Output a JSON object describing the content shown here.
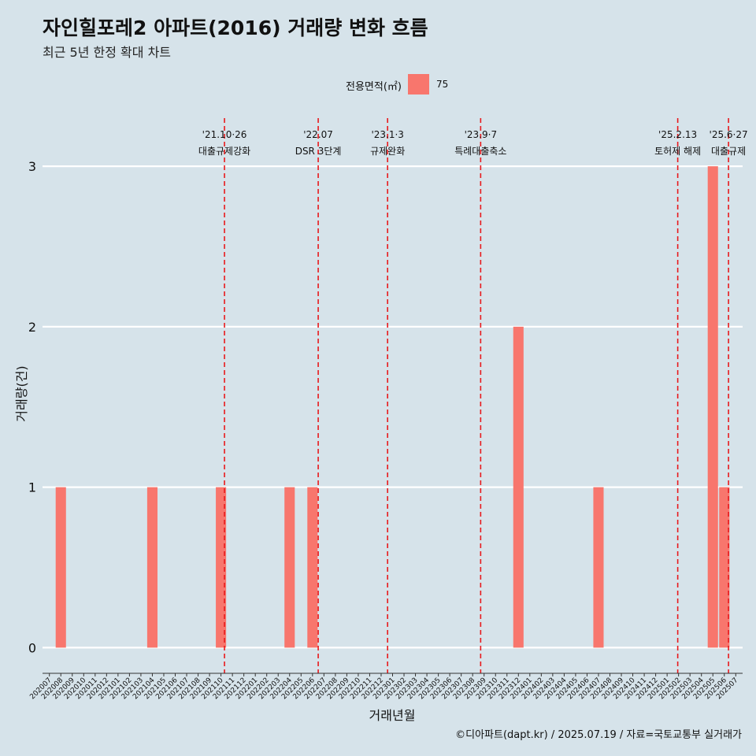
{
  "header": {
    "title": "자인힐포레2 아파트(2016) 거래량 변화 흐름",
    "subtitle": "최근 5년 한정 확대 차트"
  },
  "legend": {
    "title": "전용면적(㎡)",
    "items": [
      {
        "label": "75",
        "color": "#f8766d"
      }
    ]
  },
  "caption": "©디아파트(dapt.kr) / 2025.07.19 / 자료=국토교통부 실거래가",
  "chart_data": {
    "type": "bar",
    "xlabel": "거래년월",
    "ylabel": "거래량(건)",
    "ylim": [
      -0.16,
      3.3
    ],
    "yticks": [
      0,
      1,
      2,
      3
    ],
    "grid": "horizontal major lines only",
    "legend_position": "top",
    "bar_color": "#f8766d",
    "categories": [
      "202007",
      "202008",
      "202009",
      "202010",
      "202011",
      "202012",
      "202101",
      "202102",
      "202103",
      "202104",
      "202105",
      "202106",
      "202107",
      "202108",
      "202109",
      "202110",
      "202111",
      "202112",
      "202201",
      "202202",
      "202203",
      "202204",
      "202205",
      "202206",
      "202207",
      "202208",
      "202209",
      "202210",
      "202211",
      "202212",
      "202301",
      "202302",
      "202303",
      "202304",
      "202305",
      "202306",
      "202307",
      "202308",
      "202309",
      "202310",
      "202311",
      "202312",
      "202401",
      "202402",
      "202403",
      "202404",
      "202405",
      "202406",
      "202407",
      "202408",
      "202409",
      "202410",
      "202411",
      "202412",
      "202501",
      "202502",
      "202503",
      "202504",
      "202505",
      "202506",
      "202507"
    ],
    "series": [
      {
        "name": "75",
        "bars": [
          {
            "x": "202008",
            "y": 1
          },
          {
            "x": "202104",
            "y": 1
          },
          {
            "x": "202110",
            "y": 1
          },
          {
            "x": "202204",
            "y": 1
          },
          {
            "x": "202206",
            "y": 1
          },
          {
            "x": "202312",
            "y": 2
          },
          {
            "x": "202407",
            "y": 1
          },
          {
            "x": "202505",
            "y": 3
          },
          {
            "x": "202506",
            "y": 1
          }
        ]
      }
    ],
    "events": [
      {
        "date": "'21.10·26",
        "label": "대출규제강화",
        "x": "2021-10-26",
        "color": "#e8191c"
      },
      {
        "date": "'22.07",
        "label": "DSR 3단계",
        "x": "2022-07-01",
        "color": "#e8191c"
      },
      {
        "date": "'23.1·3",
        "label": "규제완화",
        "x": "2023-01-03",
        "color": "#e8191c"
      },
      {
        "date": "'23.9·7",
        "label": "특례대출축소",
        "x": "2023-09-07",
        "color": "#e8191c"
      },
      {
        "date": "'25.2.13",
        "label": "토허제 해제",
        "x": "2025-02-13",
        "color": "#e8191c"
      },
      {
        "date": "'25.6·27",
        "label": "대출규제",
        "x": "2025-06-27",
        "color": "#e8191c"
      }
    ]
  }
}
